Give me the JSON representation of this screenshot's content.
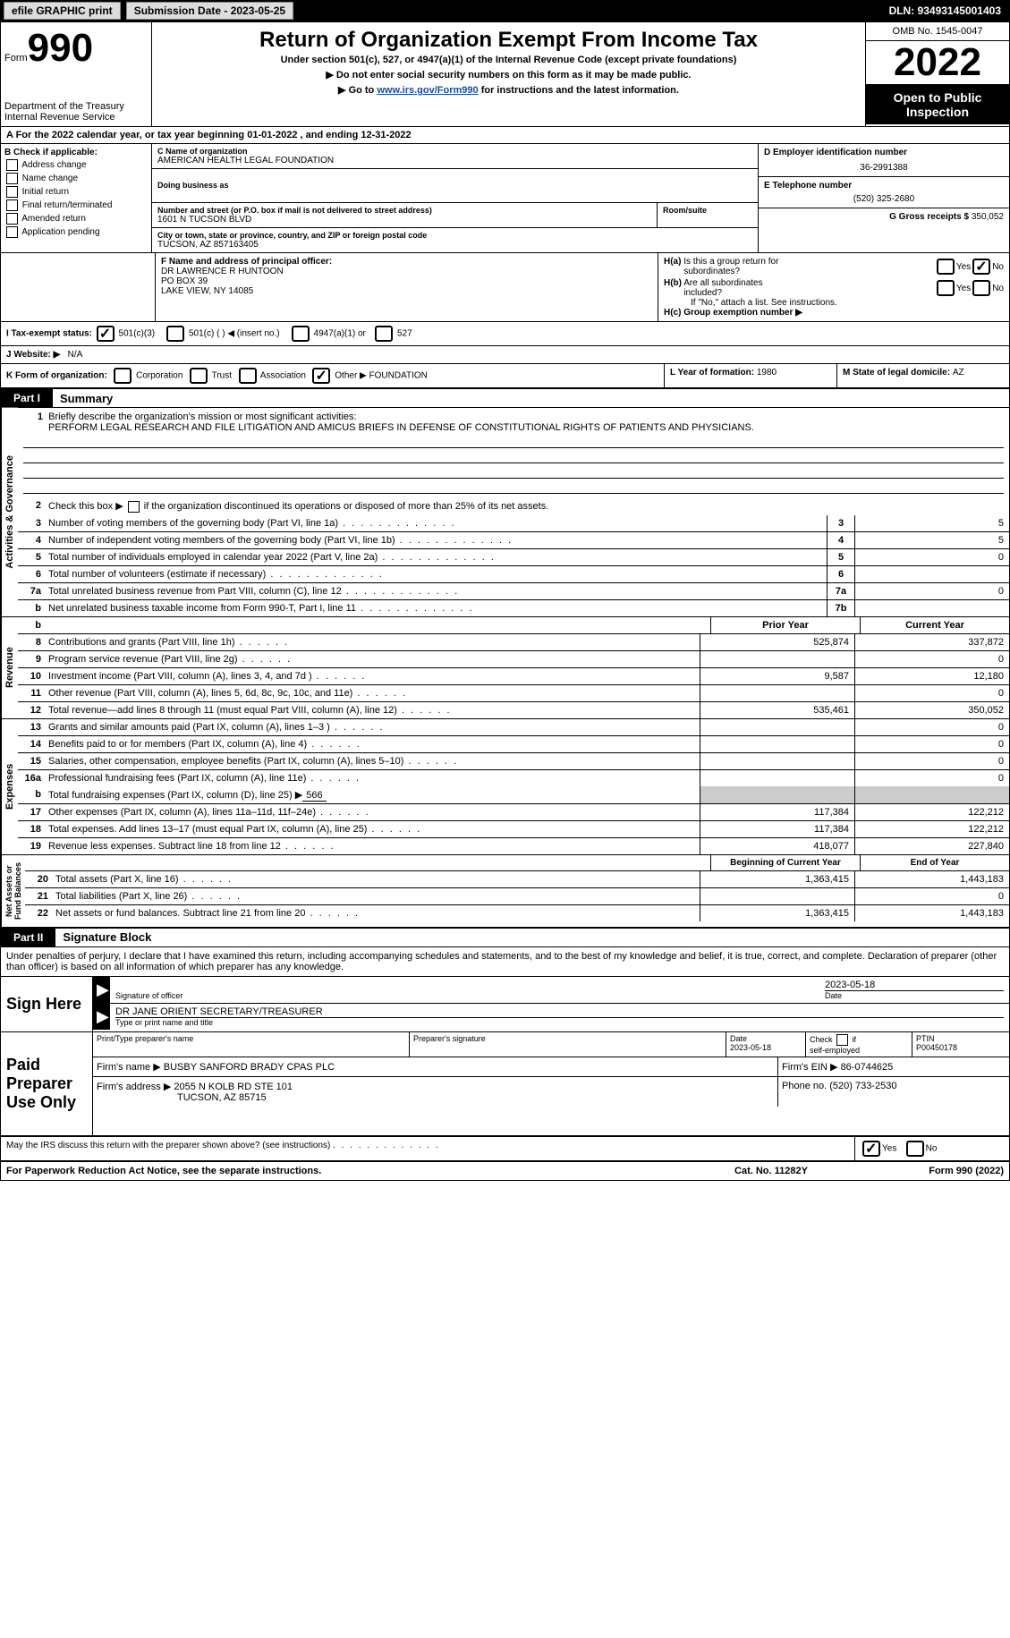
{
  "topbar": {
    "efile": "efile GRAPHIC print",
    "submission_label": "Submission Date - 2023-05-25",
    "dln_label": "DLN: 93493145001403"
  },
  "header": {
    "form_word": "Form",
    "form_num": "990",
    "dept": "Department of the Treasury",
    "irs": "Internal Revenue Service",
    "title": "Return of Organization Exempt From Income Tax",
    "subtitle": "Under section 501(c), 527, or 4947(a)(1) of the Internal Revenue Code (except private foundations)",
    "note1_pre": "▶ Do not enter social security numbers on this form as it may be made public.",
    "note2_pre": "▶ Go to ",
    "note2_link": "www.irs.gov/Form990",
    "note2_post": " for instructions and the latest information.",
    "omb": "OMB No. 1545-0047",
    "year": "2022",
    "open": "Open to Public Inspection"
  },
  "section_a": {
    "text_pre": "A For the 2022 calendar year, or tax year beginning ",
    "begin": "01-01-2022",
    "mid": "   , and ending ",
    "end": "12-31-2022"
  },
  "block_b": {
    "label": "B Check if applicable:",
    "items": [
      "Address change",
      "Name change",
      "Initial return",
      "Final return/terminated",
      "Amended return",
      "Application pending"
    ]
  },
  "block_c": {
    "name_lbl": "C Name of organization",
    "name": "AMERICAN HEALTH LEGAL FOUNDATION",
    "dba_lbl": "Doing business as",
    "dba": "",
    "addr_lbl": "Number and street (or P.O. box if mail is not delivered to street address)",
    "room_lbl": "Room/suite",
    "addr": "1601 N TUCSON BLVD",
    "city_lbl": "City or town, state or province, country, and ZIP or foreign postal code",
    "city": "TUCSON, AZ  857163405"
  },
  "block_d": {
    "ein_lbl": "D Employer identification number",
    "ein": "36-2991388",
    "tel_lbl": "E Telephone number",
    "tel": "(520) 325-2680",
    "gross_lbl": "G Gross receipts $ ",
    "gross": "350,052"
  },
  "block_f": {
    "lbl": "F Name and address of principal officer:",
    "name": "DR LAWRENCE R HUNTOON",
    "addr1": "PO BOX 39",
    "addr2": "LAKE VIEW, NY  14085"
  },
  "block_h": {
    "a_lbl": "H(a)  Is this a group return for subordinates?",
    "b_lbl": "H(b)  Are all subordinates included?",
    "b_note": "If \"No,\" attach a list. See instructions.",
    "c_lbl": "H(c)  Group exemption number ▶"
  },
  "tax_status": {
    "lbl": "I   Tax-exempt status:",
    "opts": [
      "501(c)(3)",
      "501(c) (  ) ◀ (insert no.)",
      "4947(a)(1) or",
      "527"
    ]
  },
  "website": {
    "lbl": "J   Website: ▶",
    "val": "N/A"
  },
  "block_k": {
    "lbl": "K Form of organization:",
    "opts": [
      "Corporation",
      "Trust",
      "Association",
      "Other ▶"
    ],
    "other_val": "FOUNDATION"
  },
  "block_l": {
    "lbl": "L Year of formation: ",
    "val": "1980"
  },
  "block_m": {
    "lbl": "M State of legal domicile: ",
    "val": "AZ"
  },
  "part1": {
    "num": "Part I",
    "title": "Summary"
  },
  "mission": {
    "lbl": "Briefly describe the organization's mission or most significant activities:",
    "text": "PERFORM LEGAL RESEARCH AND FILE LITIGATION AND AMICUS BRIEFS IN DEFENSE OF CONSTITUTIONAL RIGHTS OF PATIENTS AND PHYSICIANS."
  },
  "line2": "Check this box ▶       if the organization discontinued its operations or disposed of more than 25% of its net assets.",
  "lines_gov": [
    {
      "n": "3",
      "t": "Number of voting members of the governing body (Part VI, line 1a)",
      "box": "3",
      "v": "5"
    },
    {
      "n": "4",
      "t": "Number of independent voting members of the governing body (Part VI, line 1b)",
      "box": "4",
      "v": "5"
    },
    {
      "n": "5",
      "t": "Total number of individuals employed in calendar year 2022 (Part V, line 2a)",
      "box": "5",
      "v": "0"
    },
    {
      "n": "6",
      "t": "Total number of volunteers (estimate if necessary)",
      "box": "6",
      "v": ""
    },
    {
      "n": "7a",
      "t": "Total unrelated business revenue from Part VIII, column (C), line 12",
      "box": "7a",
      "v": "0"
    },
    {
      "n": "b",
      "t": "Net unrelated business taxable income from Form 990-T, Part I, line 11",
      "box": "7b",
      "v": ""
    }
  ],
  "col_headers": {
    "prior": "Prior Year",
    "current": "Current Year"
  },
  "revenue": [
    {
      "n": "8",
      "t": "Contributions and grants (Part VIII, line 1h)",
      "p": "525,874",
      "c": "337,872"
    },
    {
      "n": "9",
      "t": "Program service revenue (Part VIII, line 2g)",
      "p": "",
      "c": "0"
    },
    {
      "n": "10",
      "t": "Investment income (Part VIII, column (A), lines 3, 4, and 7d )",
      "p": "9,587",
      "c": "12,180"
    },
    {
      "n": "11",
      "t": "Other revenue (Part VIII, column (A), lines 5, 6d, 8c, 9c, 10c, and 11e)",
      "p": "",
      "c": "0"
    },
    {
      "n": "12",
      "t": "Total revenue—add lines 8 through 11 (must equal Part VIII, column (A), line 12)",
      "p": "535,461",
      "c": "350,052"
    }
  ],
  "expenses": [
    {
      "n": "13",
      "t": "Grants and similar amounts paid (Part IX, column (A), lines 1–3 )",
      "p": "",
      "c": "0"
    },
    {
      "n": "14",
      "t": "Benefits paid to or for members (Part IX, column (A), line 4)",
      "p": "",
      "c": "0"
    },
    {
      "n": "15",
      "t": "Salaries, other compensation, employee benefits (Part IX, column (A), lines 5–10)",
      "p": "",
      "c": "0"
    },
    {
      "n": "16a",
      "t": "Professional fundraising fees (Part IX, column (A), line 11e)",
      "p": "",
      "c": "0"
    }
  ],
  "exp_b": {
    "n": "b",
    "t": "Total fundraising expenses (Part IX, column (D), line 25) ▶",
    "v": "566"
  },
  "expenses2": [
    {
      "n": "17",
      "t": "Other expenses (Part IX, column (A), lines 11a–11d, 11f–24e)",
      "p": "117,384",
      "c": "122,212"
    },
    {
      "n": "18",
      "t": "Total expenses. Add lines 13–17 (must equal Part IX, column (A), line 25)",
      "p": "117,384",
      "c": "122,212"
    },
    {
      "n": "19",
      "t": "Revenue less expenses. Subtract line 18 from line 12",
      "p": "418,077",
      "c": "227,840"
    }
  ],
  "na_headers": {
    "begin": "Beginning of Current Year",
    "end": "End of Year"
  },
  "netassets": [
    {
      "n": "20",
      "t": "Total assets (Part X, line 16)",
      "p": "1,363,415",
      "c": "1,443,183"
    },
    {
      "n": "21",
      "t": "Total liabilities (Part X, line 26)",
      "p": "",
      "c": "0"
    },
    {
      "n": "22",
      "t": "Net assets or fund balances. Subtract line 21 from line 20",
      "p": "1,363,415",
      "c": "1,443,183"
    }
  ],
  "part2": {
    "num": "Part II",
    "title": "Signature Block"
  },
  "penalty": "Under penalties of perjury, I declare that I have examined this return, including accompanying schedules and statements, and to the best of my knowledge and belief, it is true, correct, and complete. Declaration of preparer (other than officer) is based on all information of which preparer has any knowledge.",
  "sign": {
    "here": "Sign Here",
    "sig_lbl": "Signature of officer",
    "date_lbl": "Date",
    "date": "2023-05-18",
    "name": "DR JANE ORIENT  SECRETARY/TREASURER",
    "name_lbl": "Type or print name and title"
  },
  "paid": {
    "title": "Paid Preparer Use Only",
    "prep_name_lbl": "Print/Type preparer's name",
    "prep_sig_lbl": "Preparer's signature",
    "date_lbl": "Date",
    "date": "2023-05-18",
    "check_lbl": "Check         if self-employed",
    "ptin_lbl": "PTIN",
    "ptin": "P00450178",
    "firm_name_lbl": "Firm's name    ▶ ",
    "firm_name": "BUSBY SANFORD BRADY CPAS PLC",
    "firm_ein_lbl": "Firm's EIN ▶ ",
    "firm_ein": "86-0744625",
    "firm_addr_lbl": "Firm's address ▶ ",
    "firm_addr1": "2055 N KOLB RD STE 101",
    "firm_addr2": "TUCSON, AZ  85715",
    "phone_lbl": "Phone no. ",
    "phone": "(520) 733-2530"
  },
  "discuss": "May the IRS discuss this return with the preparer shown above? (see instructions)",
  "footer": {
    "left": "For Paperwork Reduction Act Notice, see the separate instructions.",
    "cat": "Cat. No. 11282Y",
    "right": "Form 990 (2022)"
  }
}
